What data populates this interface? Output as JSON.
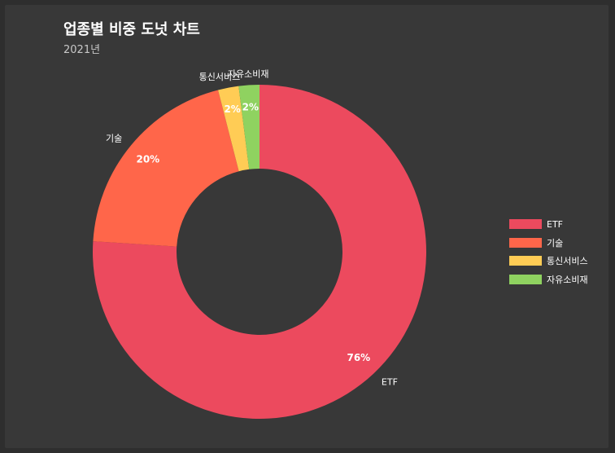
{
  "chart_data": {
    "type": "pie",
    "title": "업종별 비중 도넛 차트",
    "subtitle": "2021년",
    "categories": [
      "ETF",
      "기술",
      "통신서비스",
      "자유소비재"
    ],
    "values": [
      76,
      20,
      2,
      2
    ],
    "value_labels": [
      "76%",
      "20%",
      "2%",
      "2%"
    ],
    "colors": [
      "#ec4a5e",
      "#ff664a",
      "#ffcc55",
      "#8fd260"
    ],
    "donut": true,
    "legend_position": "right"
  }
}
